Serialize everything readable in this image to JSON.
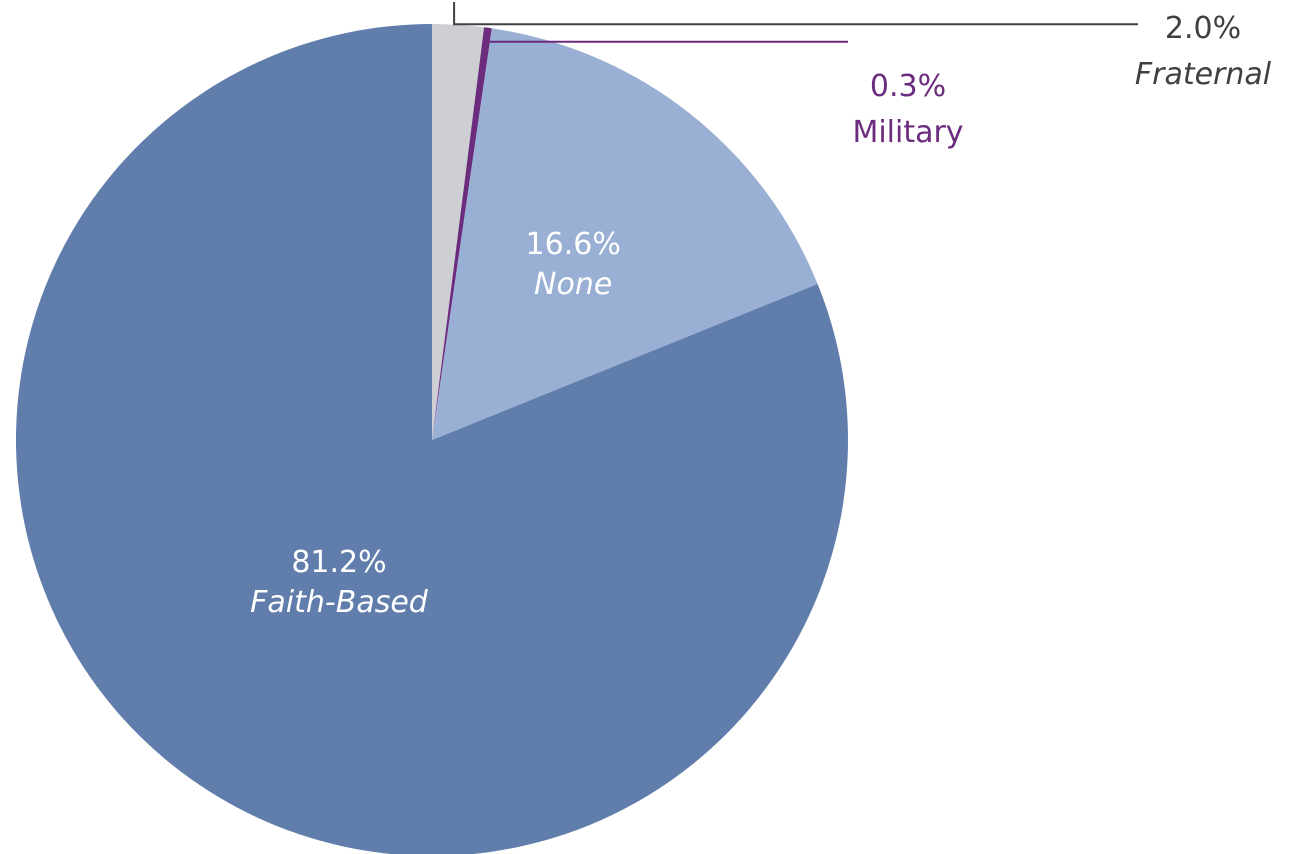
{
  "chart_data": {
    "type": "pie",
    "title": "",
    "slices": [
      {
        "label": "Fraternal",
        "value": 2.0,
        "value_label": "2.0%",
        "color": "#cdcfd3",
        "label_color": "#404040",
        "label_style": "italic",
        "label_placement": "outside-top-right"
      },
      {
        "label": "Military",
        "value": 0.3,
        "value_label": "0.3%",
        "color": "#6b2c7e",
        "label_color": "#6b2c7e",
        "label_style": "normal",
        "label_placement": "outside-right"
      },
      {
        "label": "None",
        "value": 16.6,
        "value_label": "16.6%",
        "color": "#9aafd4",
        "label_color": "#ffffff",
        "label_style": "italic",
        "label_placement": "inside"
      },
      {
        "label": "Faith-Based",
        "value": 81.2,
        "value_label": "81.2%",
        "color": "#607dab",
        "label_color": "#ffffff",
        "label_style": "italic",
        "label_placement": "inside"
      }
    ],
    "start_angle": "12 o'clock",
    "direction": "clockwise",
    "legend": "none"
  }
}
